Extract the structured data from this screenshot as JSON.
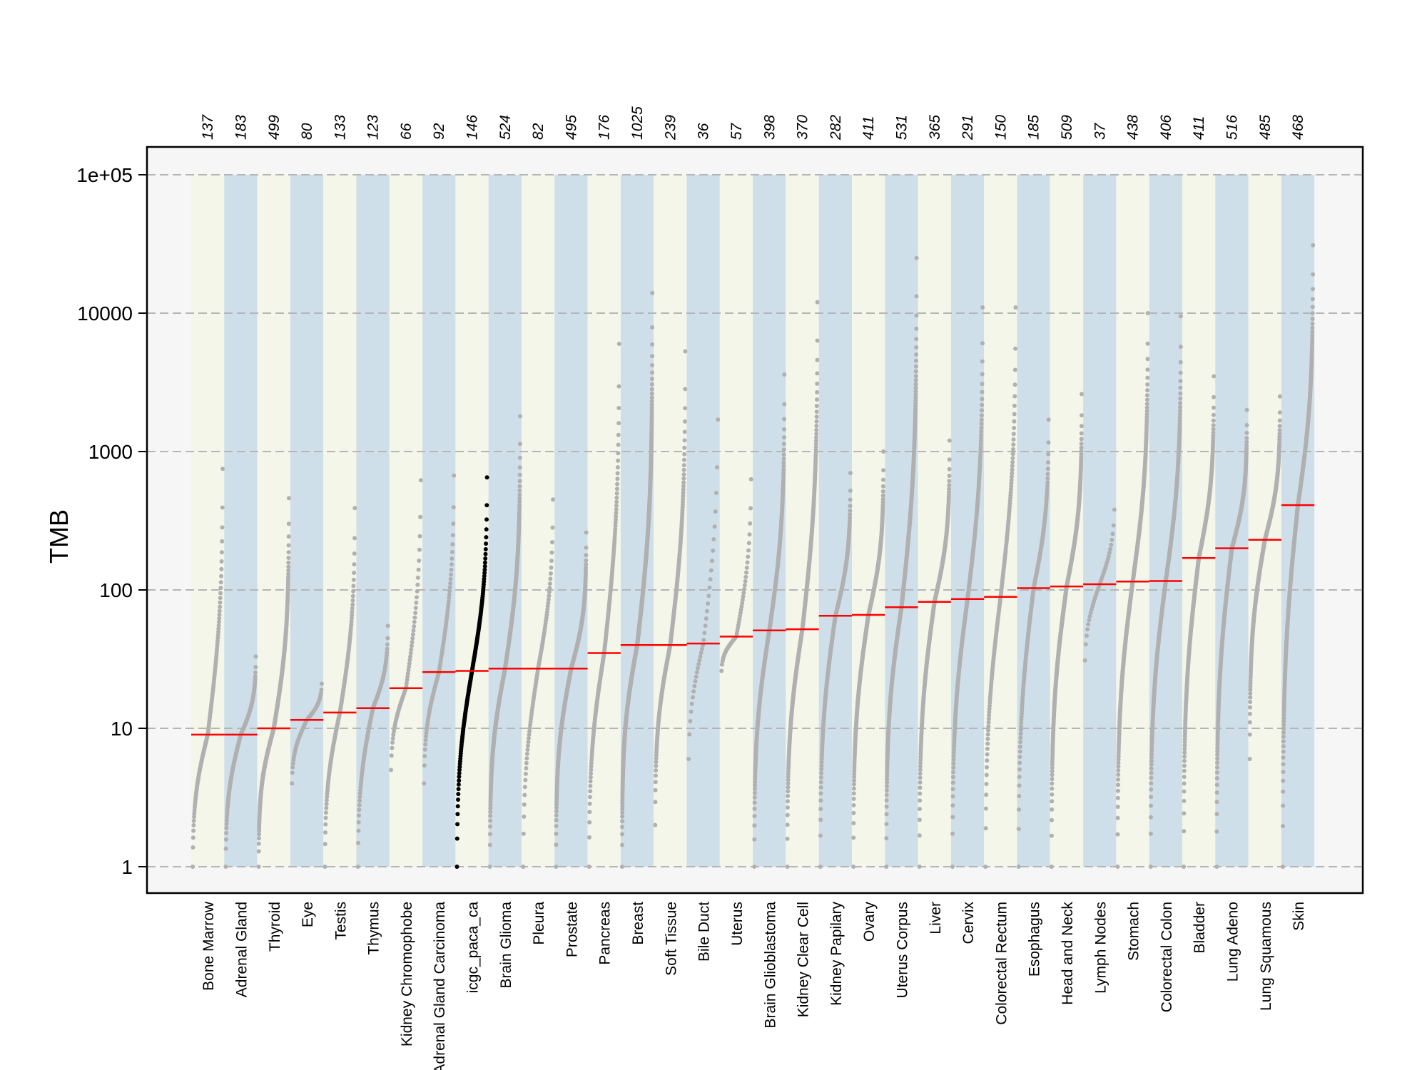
{
  "chart_data": {
    "type": "scatter",
    "ylabel": "TMB",
    "yscale": "log",
    "ylim": [
      0.7,
      150000
    ],
    "yticks": [
      1,
      10,
      100,
      1000,
      10000,
      100000
    ],
    "ytick_labels": [
      "1",
      "10",
      "100",
      "1000",
      "10000",
      "1e+05"
    ],
    "grid": "dashed horizontal",
    "band_colors": [
      "#f4f6e9",
      "#cfdfe9"
    ],
    "highlight_category": "icgc_paca_ca",
    "categories": [
      {
        "name": "Bone Marrow",
        "n": 137,
        "median": 9,
        "min": 1,
        "max": 750
      },
      {
        "name": "Adrenal Gland",
        "n": 183,
        "median": 9,
        "min": 1,
        "max": 33
      },
      {
        "name": "Thyroid",
        "n": 499,
        "median": 10,
        "min": 1,
        "max": 460
      },
      {
        "name": "Eye",
        "n": 80,
        "median": 11.5,
        "min": 4,
        "max": 21
      },
      {
        "name": "Testis",
        "n": 133,
        "median": 13,
        "min": 1,
        "max": 390
      },
      {
        "name": "Thymus",
        "n": 123,
        "median": 14,
        "min": 1,
        "max": 55
      },
      {
        "name": "Kidney Chromophobe",
        "n": 66,
        "median": 19.5,
        "min": 5,
        "max": 620
      },
      {
        "name": "Adrenal Gland Carcinoma",
        "n": 92,
        "median": 25.5,
        "min": 4,
        "max": 670
      },
      {
        "name": "icgc_paca_ca",
        "n": 146,
        "median": 26,
        "min": 1,
        "max": 650
      },
      {
        "name": "Brain Glioma",
        "n": 524,
        "median": 27,
        "min": 1,
        "max": 1800
      },
      {
        "name": "Pleura",
        "n": 82,
        "median": 27,
        "min": 1,
        "max": 450
      },
      {
        "name": "Prostate",
        "n": 495,
        "median": 27,
        "min": 1,
        "max": 260
      },
      {
        "name": "Pancreas",
        "n": 176,
        "median": 35,
        "min": 1,
        "max": 6000
      },
      {
        "name": "Breast",
        "n": 1025,
        "median": 40,
        "min": 1,
        "max": 14000
      },
      {
        "name": "Soft Tissue",
        "n": 239,
        "median": 40,
        "min": 2,
        "max": 5300
      },
      {
        "name": "Bile Duct",
        "n": 36,
        "median": 41,
        "min": 6,
        "max": 1700
      },
      {
        "name": "Uterus",
        "n": 57,
        "median": 46,
        "min": 26,
        "max": 630
      },
      {
        "name": "Brain Glioblastoma",
        "n": 398,
        "median": 51,
        "min": 1,
        "max": 3600
      },
      {
        "name": "Kidney Clear Cell",
        "n": 370,
        "median": 52,
        "min": 1,
        "max": 12000
      },
      {
        "name": "Kidney Papilary",
        "n": 282,
        "median": 65,
        "min": 1,
        "max": 700
      },
      {
        "name": "Ovary",
        "n": 411,
        "median": 66,
        "min": 1,
        "max": 1000
      },
      {
        "name": "Uterus Corpus",
        "n": 531,
        "median": 75,
        "min": 1,
        "max": 25000
      },
      {
        "name": "Liver",
        "n": 365,
        "median": 82,
        "min": 1,
        "max": 1200
      },
      {
        "name": "Cervix",
        "n": 291,
        "median": 86,
        "min": 1,
        "max": 11000
      },
      {
        "name": "Colorectal Rectum",
        "n": 150,
        "median": 89,
        "min": 1,
        "max": 11000
      },
      {
        "name": "Esophagus",
        "n": 185,
        "median": 103,
        "min": 1,
        "max": 1700
      },
      {
        "name": "Head and Neck",
        "n": 509,
        "median": 106,
        "min": 1,
        "max": 2600
      },
      {
        "name": "Lymph Nodes",
        "n": 37,
        "median": 110,
        "min": 31,
        "max": 380
      },
      {
        "name": "Stomach",
        "n": 438,
        "median": 115,
        "min": 1,
        "max": 10000
      },
      {
        "name": "Colorectal Colon",
        "n": 406,
        "median": 116,
        "min": 1,
        "max": 9500
      },
      {
        "name": "Bladder",
        "n": 411,
        "median": 170,
        "min": 1,
        "max": 3500
      },
      {
        "name": "Lung Adeno",
        "n": 516,
        "median": 200,
        "min": 1,
        "max": 2000
      },
      {
        "name": "Lung Squamous",
        "n": 485,
        "median": 230,
        "min": 6,
        "max": 2500
      },
      {
        "name": "Skin",
        "n": 468,
        "median": 410,
        "min": 1,
        "max": 31000
      }
    ]
  }
}
